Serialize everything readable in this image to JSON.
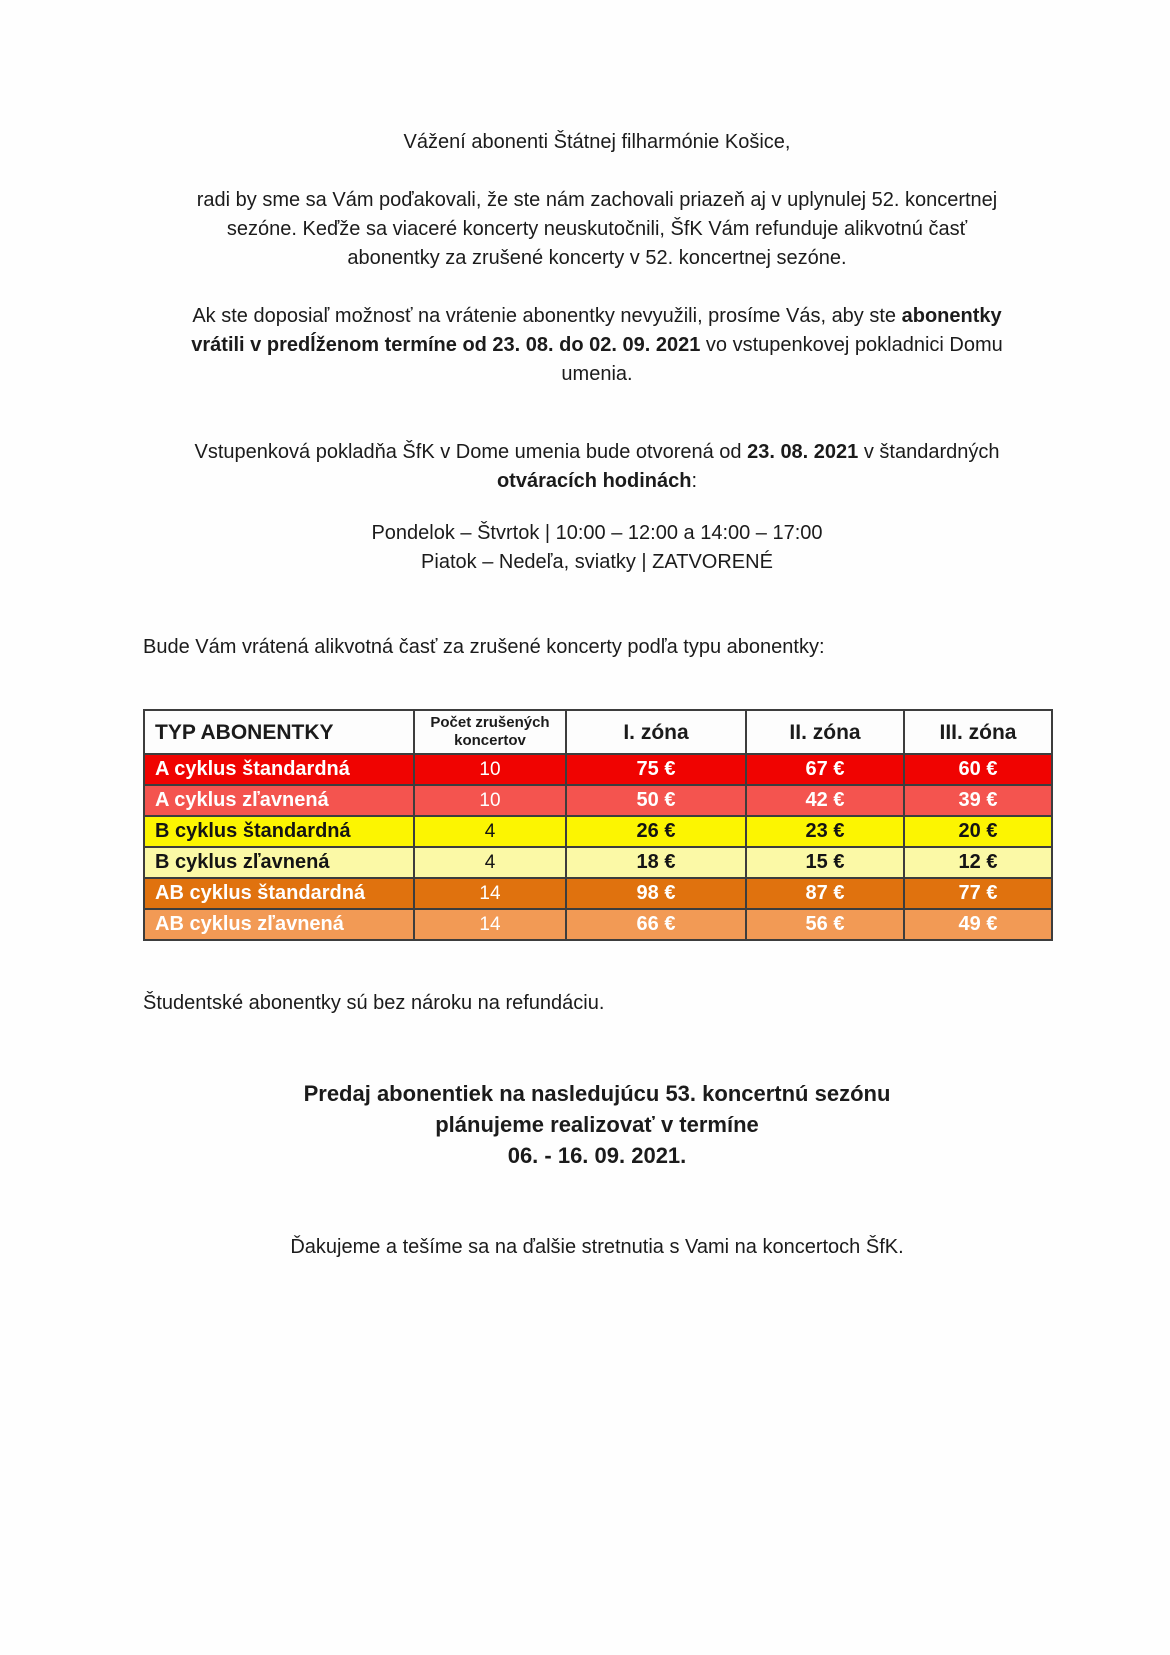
{
  "doc": {
    "salutation": [
      [
        {
          "t": "Vážení abonenti Štátnej filharmónie Košice,",
          "b": false
        }
      ]
    ],
    "thanks": [
      [
        {
          "t": "radi by sme sa Vám poďakovali, že ste nám zachovali priazeň aj v uplynulej 52. koncertnej",
          "b": false
        }
      ],
      [
        {
          "t": "sezóne. Keďže sa viaceré koncerty neuskutočnili, ŠfK Vám refunduje alikvotnú časť",
          "b": false
        }
      ],
      [
        {
          "t": "abonentky za zrušené koncerty v 52. koncertnej sezóne.",
          "b": false
        }
      ]
    ],
    "return_deadline": [
      [
        {
          "t": "Ak ste doposiaľ možnosť na vrátenie abonentky nevyužili, prosíme Vás, aby ste ",
          "b": false
        },
        {
          "t": "abonentky",
          "b": true
        }
      ],
      [
        {
          "t": "vrátili v predĺženom termíne od 23. 08. do 02. 09. 2021",
          "b": true
        },
        {
          "t": " vo vstupenkovej pokladnici Domu",
          "b": false
        }
      ],
      [
        {
          "t": "umenia.",
          "b": false
        }
      ]
    ],
    "box_office": [
      [
        {
          "t": "Vstupenková pokladňa ŠfK v Dome umenia bude otvorená od ",
          "b": false
        },
        {
          "t": "23. 08. 2021",
          "b": true
        },
        {
          "t": " v štandardných",
          "b": false
        }
      ],
      [
        {
          "t": "otváracích hodinách",
          "b": true
        },
        {
          "t": ":",
          "b": false
        }
      ]
    ],
    "opening_hours": [
      [
        {
          "t": "Pondelok – Štvrtok | 10:00 – 12:00 a 14:00 – 17:00",
          "b": false
        }
      ],
      [
        {
          "t": "Piatok – Nedeľa, sviatky | ZATVORENÉ",
          "b": false
        }
      ]
    ],
    "refund_intro": [
      [
        {
          "t": "Bude Vám vrátená alikvotná časť za zrušené koncerty podľa typu abonentky:",
          "b": false
        }
      ]
    ],
    "students_note": [
      [
        {
          "t": "Študentské abonentky sú bez nároku na refundáciu.",
          "b": false
        }
      ]
    ],
    "sale_announcement": [
      [
        {
          "t": "Predaj abonentiek na nasledujúcu 53. koncertnú sezónu",
          "b": true
        }
      ],
      [
        {
          "t": "plánujeme realizovať v termíne",
          "b": true
        }
      ],
      [
        {
          "t": "06. - 16. 09. 2021.",
          "b": true
        }
      ]
    ],
    "closing": [
      [
        {
          "t": "Ďakujeme a tešíme sa na ďalšie stretnutia s Vami na koncertoch ŠfK.",
          "b": false
        }
      ]
    ]
  },
  "table": {
    "headers": [
      "TYP ABONENTKY",
      "Počet zrušených koncertov",
      "I. zóna",
      "II. zóna",
      "III. zóna"
    ],
    "rows": [
      {
        "label": "A cyklus štandardná",
        "count": "10",
        "zone1": "75 €",
        "zone2": "67 €",
        "zone3": "60 €",
        "bg": "#f00301",
        "fg": "#ffffff"
      },
      {
        "label": "A cyklus zľavnená",
        "count": "10",
        "zone1": "50 €",
        "zone2": "42 €",
        "zone3": "39 €",
        "bg": "#f4544f",
        "fg": "#ffffff"
      },
      {
        "label": "B cyklus štandardná",
        "count": "4",
        "zone1": "26 €",
        "zone2": "23 €",
        "zone3": "20 €",
        "bg": "#fcf501",
        "fg": "#141414"
      },
      {
        "label": "B cyklus zľavnená",
        "count": "4",
        "zone1": "18 €",
        "zone2": "15 €",
        "zone3": "12 €",
        "bg": "#fbf9a6",
        "fg": "#141414"
      },
      {
        "label": "AB cyklus štandardná",
        "count": "14",
        "zone1": "98 €",
        "zone2": "87 €",
        "zone3": "77 €",
        "bg": "#e0720e",
        "fg": "#ffffff"
      },
      {
        "label": "AB cyklus zľavnená",
        "count": "14",
        "zone1": "66 €",
        "zone2": "56 €",
        "zone3": "49 €",
        "bg": "#f29a55",
        "fg": "#ffffff"
      }
    ]
  },
  "chart_data": {
    "type": "table",
    "title": "Refundácia podľa typu abonentky",
    "columns": [
      "TYP ABONENTKY",
      "Počet zrušených koncertov",
      "I. zóna",
      "II. zóna",
      "III. zóna"
    ],
    "rows": [
      [
        "A cyklus štandardná",
        10,
        "75 €",
        "67 €",
        "60 €"
      ],
      [
        "A cyklus zľavnená",
        10,
        "50 €",
        "42 €",
        "39 €"
      ],
      [
        "B cyklus štandardná",
        4,
        "26 €",
        "23 €",
        "20 €"
      ],
      [
        "B cyklus zľavnená",
        4,
        "18 €",
        "15 €",
        "12 €"
      ],
      [
        "AB cyklus štandardná",
        14,
        "98 €",
        "87 €",
        "77 €"
      ],
      [
        "AB cyklus zľavnená",
        14,
        "66 €",
        "56 €",
        "49 €"
      ]
    ]
  }
}
